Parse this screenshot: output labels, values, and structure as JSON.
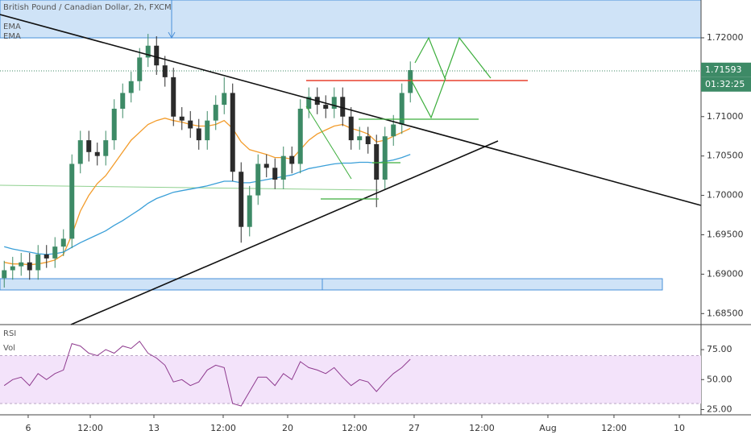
{
  "chart_data": {
    "type": "candlestick",
    "title": "British Pound / Canadian Dollar, 2h, FXCM",
    "indicator_labels": [
      "EMA",
      "EMA"
    ],
    "open": [
      1.6895,
      1.6905,
      1.691,
      1.6915,
      1.6905,
      1.6925,
      1.692,
      1.6935,
      1.6945,
      1.704,
      1.707,
      1.7055,
      1.705,
      1.707,
      1.711,
      1.713,
      1.7145,
      1.7175,
      1.719,
      1.7165,
      1.715,
      1.71,
      1.7095,
      1.7085,
      1.707,
      1.7095,
      1.7115,
      1.713,
      1.703,
      1.696,
      1.7,
      1.704,
      1.7035,
      1.702,
      1.705,
      1.704,
      1.711,
      1.7125,
      1.7115,
      1.711,
      1.7125,
      1.71,
      1.707,
      1.7075,
      1.7065,
      1.702,
      1.7075,
      1.709,
      1.713
    ],
    "high": [
      1.6917,
      1.6922,
      1.6927,
      1.6927,
      1.6937,
      1.6937,
      1.6947,
      1.6957,
      1.7052,
      1.7082,
      1.7082,
      1.7067,
      1.7082,
      1.7122,
      1.7142,
      1.7157,
      1.7187,
      1.7205,
      1.7202,
      1.7177,
      1.7162,
      1.7112,
      1.7107,
      1.7097,
      1.7107,
      1.7127,
      1.715,
      1.7142,
      1.7042,
      1.7012,
      1.7052,
      1.7052,
      1.7047,
      1.7062,
      1.7062,
      1.7122,
      1.7137,
      1.7137,
      1.7127,
      1.7137,
      1.7137,
      1.7112,
      1.7087,
      1.7087,
      1.7077,
      1.7087,
      1.7102,
      1.7142,
      1.717
    ],
    "low": [
      1.6883,
      1.6893,
      1.6898,
      1.6893,
      1.6893,
      1.6908,
      1.6908,
      1.6923,
      1.6933,
      1.7028,
      1.7043,
      1.7038,
      1.7038,
      1.7058,
      1.7098,
      1.7118,
      1.7133,
      1.7163,
      1.7153,
      1.7138,
      1.7088,
      1.7083,
      1.7073,
      1.7058,
      1.7058,
      1.7083,
      1.7103,
      1.7018,
      1.694,
      1.6948,
      1.6988,
      1.7023,
      1.7008,
      1.7008,
      1.7028,
      1.7028,
      1.7098,
      1.7103,
      1.7098,
      1.7098,
      1.7088,
      1.7058,
      1.7058,
      1.7053,
      1.6985,
      1.7008,
      1.7063,
      1.7078,
      1.7118
    ],
    "close": [
      1.6905,
      1.691,
      1.6915,
      1.6905,
      1.6925,
      1.692,
      1.6935,
      1.6945,
      1.704,
      1.707,
      1.7055,
      1.705,
      1.707,
      1.711,
      1.713,
      1.7145,
      1.7175,
      1.719,
      1.7165,
      1.715,
      1.71,
      1.7095,
      1.7085,
      1.707,
      1.7095,
      1.7115,
      1.713,
      1.703,
      1.696,
      1.7,
      1.704,
      1.7035,
      1.702,
      1.705,
      1.704,
      1.711,
      1.7125,
      1.7115,
      1.711,
      1.7125,
      1.71,
      1.707,
      1.7075,
      1.7065,
      1.702,
      1.7075,
      1.709,
      1.713,
      1.7159
    ],
    "up_color": "#3d8a66",
    "down_color": "#2b2b2b",
    "series": [
      {
        "color": "#f39c2b",
        "values": [
          1.6915,
          1.6913,
          1.6913,
          1.6912,
          1.6913,
          1.6915,
          1.6918,
          1.6925,
          1.695,
          1.698,
          1.7,
          1.7015,
          1.7025,
          1.704,
          1.7055,
          1.707,
          1.708,
          1.709,
          1.7095,
          1.7098,
          1.7095,
          1.7093,
          1.709,
          1.7088,
          1.7088,
          1.709,
          1.7095,
          1.7085,
          1.7068,
          1.7058,
          1.7055,
          1.7052,
          1.7048,
          1.7048,
          1.7046,
          1.7058,
          1.707,
          1.7078,
          1.7083,
          1.7088,
          1.709,
          1.7085,
          1.7082,
          1.7078,
          1.7068,
          1.707,
          1.7075,
          1.708,
          1.7085
        ]
      },
      {
        "color": "#3a9fd8",
        "values": [
          1.6935,
          1.6932,
          1.693,
          1.6928,
          1.6926,
          1.6925,
          1.6926,
          1.6928,
          1.6934,
          1.694,
          1.6945,
          1.695,
          1.6955,
          1.6962,
          1.6968,
          1.6975,
          1.6982,
          1.699,
          1.6996,
          1.7,
          1.7004,
          1.7006,
          1.7008,
          1.701,
          1.7012,
          1.7015,
          1.7018,
          1.7018,
          1.7016,
          1.7016,
          1.7018,
          1.702,
          1.7022,
          1.7024,
          1.7026,
          1.703,
          1.7034,
          1.7036,
          1.7038,
          1.704,
          1.7041,
          1.7041,
          1.7042,
          1.7042,
          1.7041,
          1.7043,
          1.7045,
          1.7048,
          1.7052
        ]
      }
    ],
    "last_price": 1.71593,
    "countdown": "01:32:25",
    "ylim": [
      1.6836,
      1.7248
    ],
    "yticks": [
      {
        "value": 1.685,
        "label": "1.68500"
      },
      {
        "value": 1.69,
        "label": "1.69000"
      },
      {
        "value": 1.695,
        "label": "1.69500"
      },
      {
        "value": 1.7,
        "label": "1.70000"
      },
      {
        "value": 1.705,
        "label": "1.70500"
      },
      {
        "value": 1.71,
        "label": "1.71000"
      },
      {
        "value": 1.72,
        "label": "1.72000"
      }
    ],
    "xlim": [
      0,
      82.86
    ],
    "xticks": [
      {
        "value": 3.33,
        "label": "6"
      },
      {
        "value": 10.67,
        "label": "12:00"
      },
      {
        "value": 18.19,
        "label": "13"
      },
      {
        "value": 26.38,
        "label": "12:00"
      },
      {
        "value": 34,
        "label": "20"
      },
      {
        "value": 41.9,
        "label": "12:00"
      },
      {
        "value": 48.95,
        "label": "27"
      },
      {
        "value": 56.95,
        "label": "12:00"
      },
      {
        "value": 64.76,
        "label": "Aug"
      },
      {
        "value": 72.57,
        "label": "12:00"
      },
      {
        "value": 80.29,
        "label": "10"
      }
    ],
    "rsi": {
      "labels": [
        "RSI",
        "Vol"
      ],
      "color": "#8e3a8e",
      "values": [
        45,
        50,
        52,
        45,
        55,
        50,
        55,
        58,
        80,
        78,
        72,
        70,
        75,
        72,
        78,
        76,
        82,
        72,
        68,
        62,
        48,
        50,
        45,
        48,
        58,
        62,
        60,
        30,
        28,
        40,
        52,
        52,
        45,
        55,
        50,
        65,
        60,
        58,
        55,
        60,
        52,
        45,
        50,
        48,
        40,
        48,
        55,
        60,
        67
      ],
      "ylim": [
        20.6,
        95.9
      ],
      "band": [
        30,
        70
      ],
      "yticks": [
        {
          "value": 25,
          "label": "25.00"
        },
        {
          "value": 50,
          "label": "50.00"
        },
        {
          "value": 75,
          "label": "75.00"
        }
      ]
    }
  }
}
